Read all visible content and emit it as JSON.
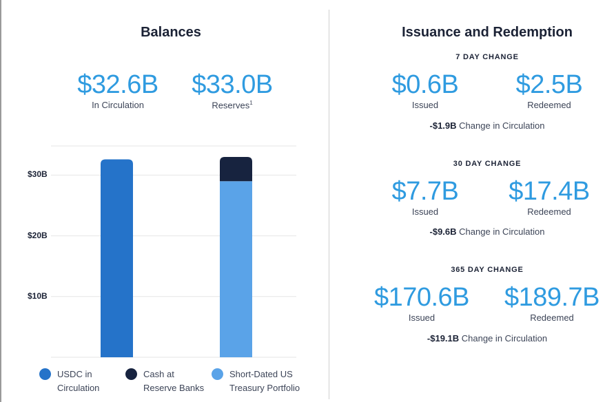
{
  "balances": {
    "title": "Balances",
    "circulation": {
      "value": "$32.6B",
      "label": "In Circulation"
    },
    "reserves": {
      "value": "$33.0B",
      "label": "Reserves",
      "footnote": "1"
    }
  },
  "issuance": {
    "title": "Issuance and Redemption",
    "periods": [
      {
        "heading": "7 DAY CHANGE",
        "issued": "$0.6B",
        "issued_label": "Issued",
        "redeemed": "$2.5B",
        "redeemed_label": "Redeemed",
        "change_value": "-$1.9B",
        "change_label": "Change in Circulation"
      },
      {
        "heading": "30 DAY CHANGE",
        "issued": "$7.7B",
        "issued_label": "Issued",
        "redeemed": "$17.4B",
        "redeemed_label": "Redeemed",
        "change_value": "-$9.6B",
        "change_label": "Change in Circulation"
      },
      {
        "heading": "365 DAY CHANGE",
        "issued": "$170.6B",
        "issued_label": "Issued",
        "redeemed": "$189.7B",
        "redeemed_label": "Redeemed",
        "change_value": "-$19.1B",
        "change_label": "Change in Circulation"
      }
    ]
  },
  "legend": [
    {
      "line1": "USDC in",
      "line2": "Circulation",
      "color": "#2573c9"
    },
    {
      "line1": "Cash at",
      "line2": "Reserve Banks",
      "color": "#17233f"
    },
    {
      "line1": "Short-Dated US",
      "line2": "Treasury Portfolio",
      "color": "#5aa3e8"
    }
  ],
  "chart_data": {
    "type": "bar",
    "stacked": true,
    "categories": [
      "",
      ""
    ],
    "series": [
      {
        "name": "USDC in Circulation",
        "color": "#2573c9",
        "values": [
          32.6,
          0
        ]
      },
      {
        "name": "Short-Dated US Treasury Portfolio",
        "color": "#5aa3e8",
        "values": [
          0,
          29.0
        ]
      },
      {
        "name": "Cash at Reserve Banks",
        "color": "#17233f",
        "values": [
          0,
          4.0
        ]
      }
    ],
    "yticks": [
      10,
      20,
      30
    ],
    "ytick_labels": [
      "$10B",
      "$20B",
      "$30B"
    ],
    "ylim": [
      0,
      35
    ],
    "grid": true,
    "legend_position": "bottom"
  }
}
